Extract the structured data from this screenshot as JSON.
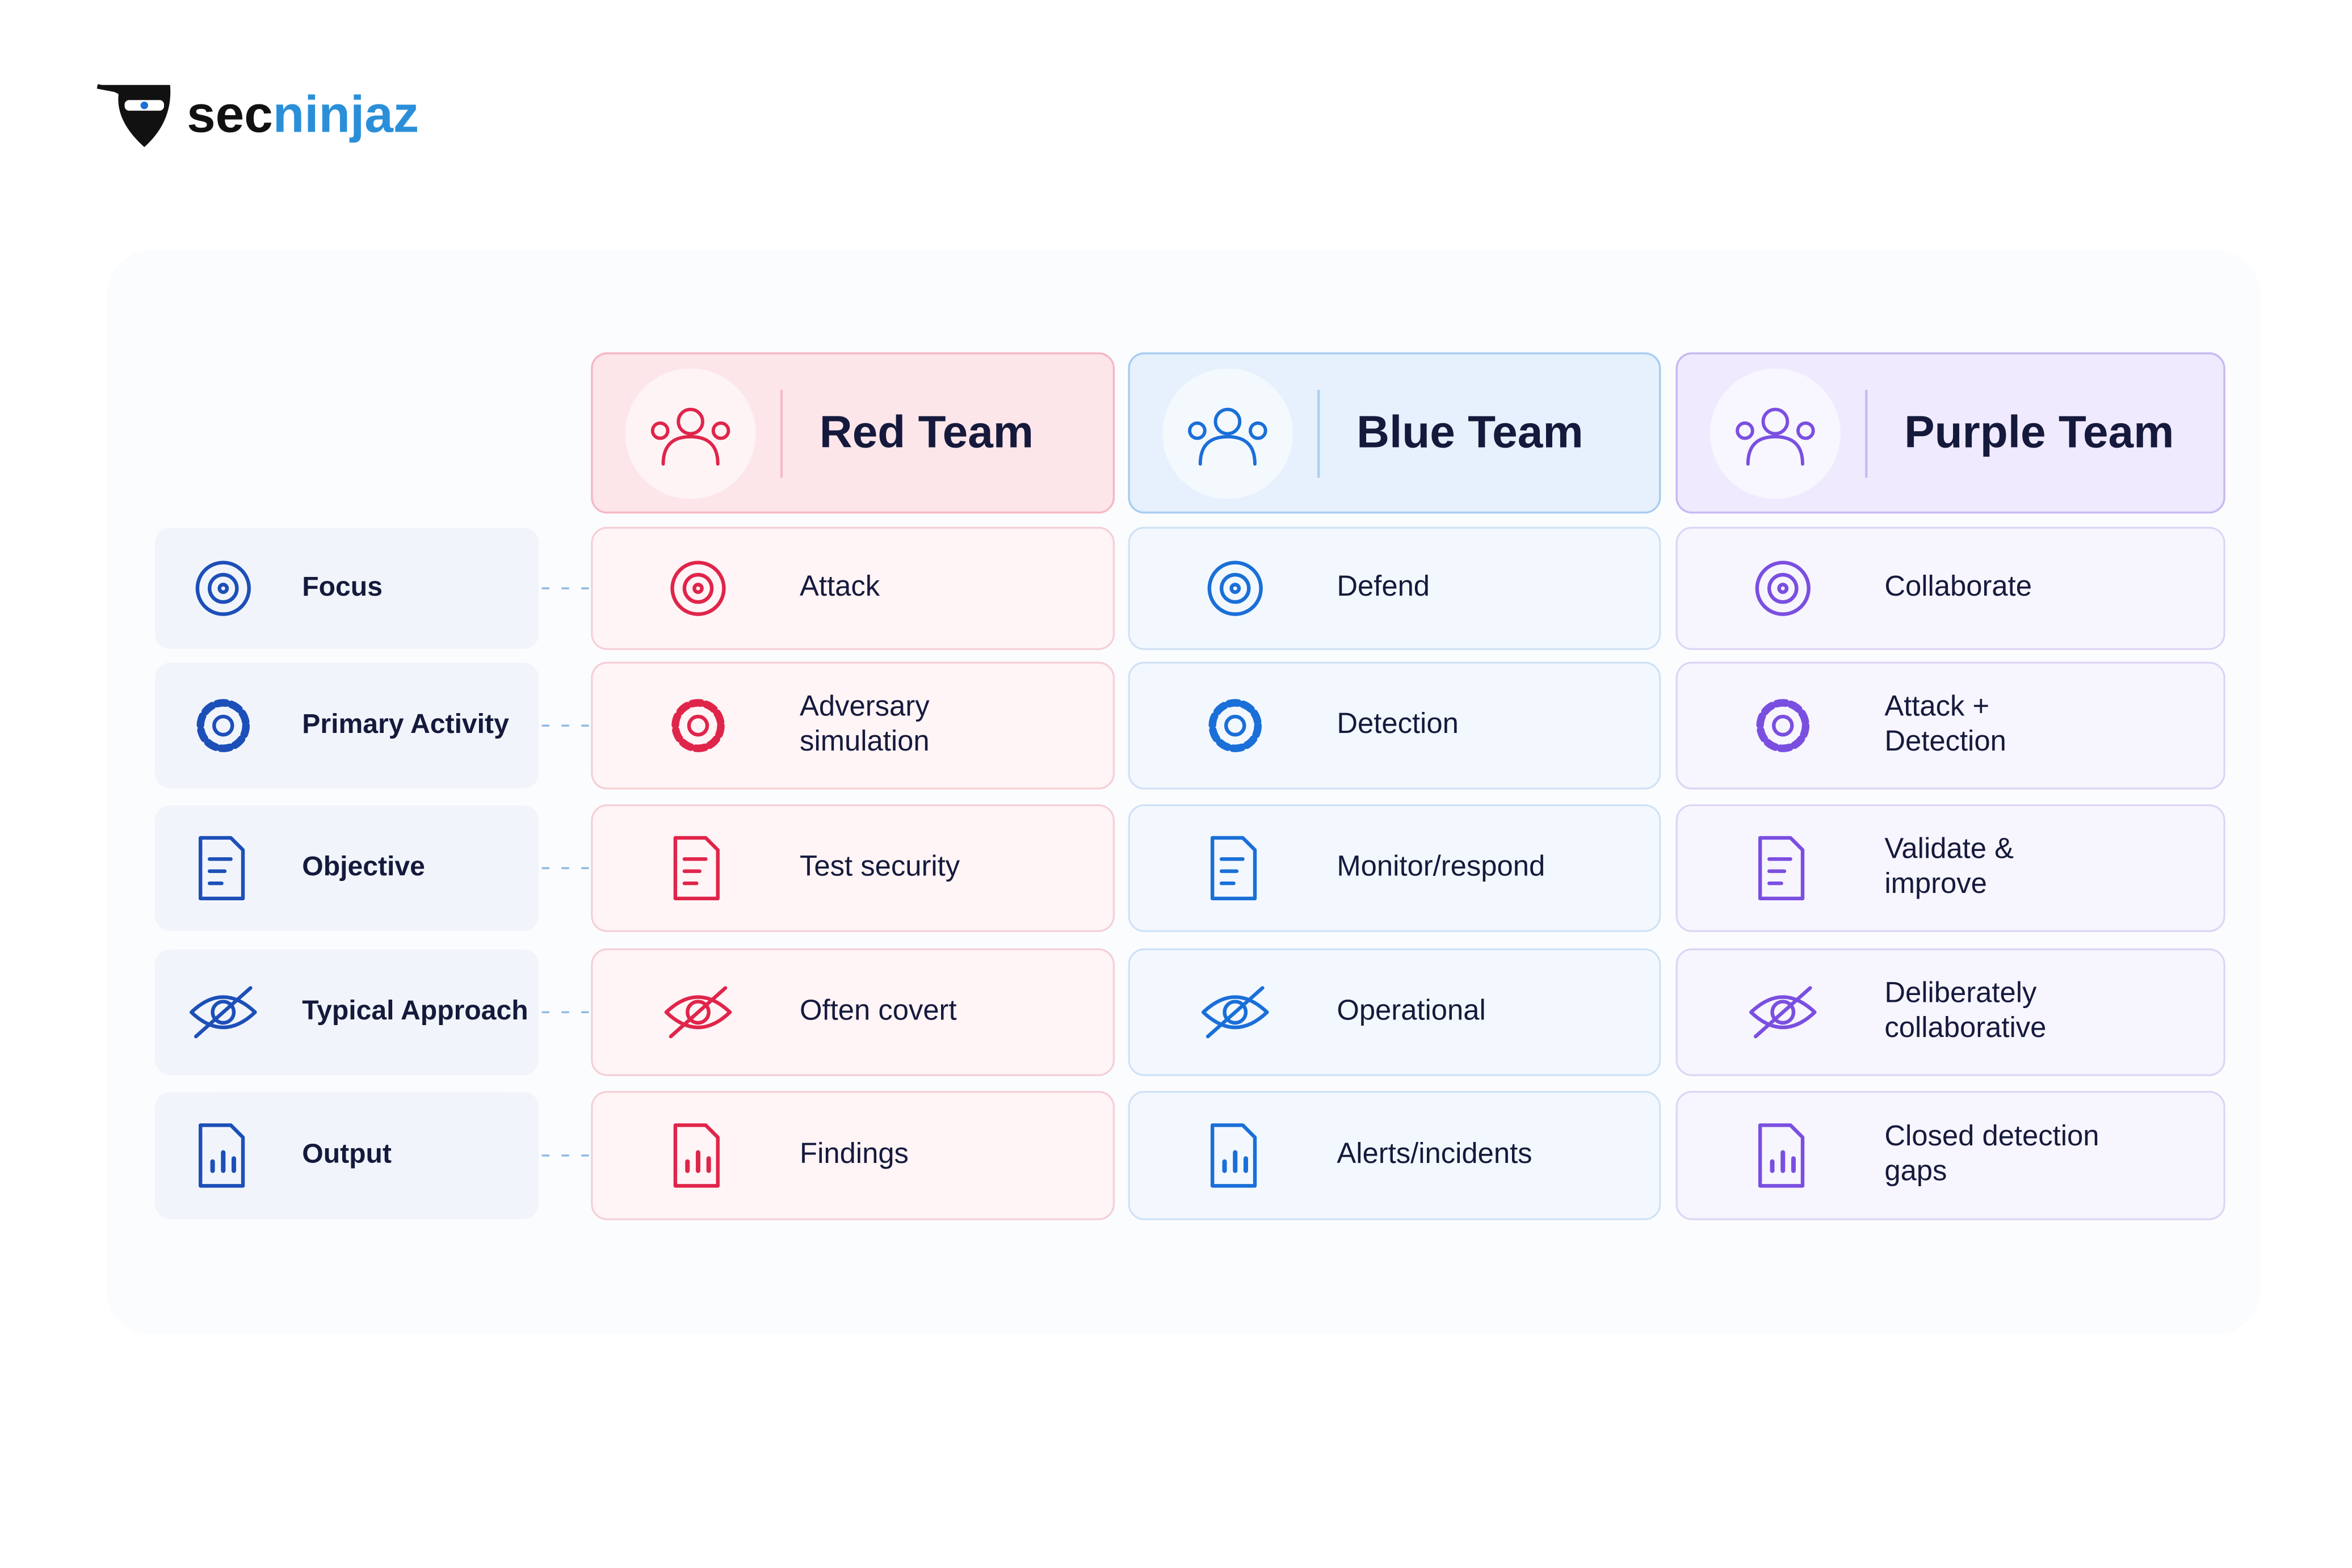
{
  "logo": {
    "prefix": "sec",
    "suffix": "ninjaz"
  },
  "columns": [
    {
      "title": "Red Team",
      "color": "#e0254a"
    },
    {
      "title": "Blue Team",
      "color": "#1a6fd8"
    },
    {
      "title": "Purple Team",
      "color": "#7a4fe0"
    }
  ],
  "rows": [
    {
      "label": "Focus",
      "cells": [
        [
          "Attack"
        ],
        [
          "Defend"
        ],
        [
          "Collaborate"
        ]
      ]
    },
    {
      "label": "Primary Activity",
      "cells": [
        [
          "Adversary",
          "simulation"
        ],
        [
          "Detection"
        ],
        [
          "Attack +",
          "Detection"
        ]
      ]
    },
    {
      "label": "Objective",
      "cells": [
        [
          "Test security"
        ],
        [
          "Monitor/respond"
        ],
        [
          "Validate &",
          "improve"
        ]
      ]
    },
    {
      "label": "Typical Approach",
      "cells": [
        [
          "Often covert"
        ],
        [
          "Operational"
        ],
        [
          "Deliberately",
          "collaborative"
        ]
      ]
    },
    {
      "label": "Output",
      "cells": [
        [
          "Findings"
        ],
        [
          "Alerts/incidents"
        ],
        [
          "Closed detection",
          "gaps"
        ]
      ]
    }
  ]
}
